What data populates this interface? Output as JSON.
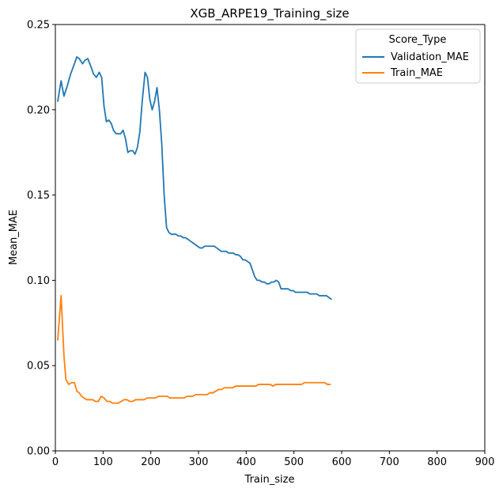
{
  "chart_data": {
    "type": "line",
    "title": "XGB_ARPE19_Training_size",
    "xlabel": "Train_size",
    "ylabel": "Mean_MAE",
    "xlim": [
      0,
      900
    ],
    "ylim": [
      0,
      0.25
    ],
    "xticks": [
      0,
      100,
      200,
      300,
      400,
      500,
      600,
      700,
      800,
      900
    ],
    "yticks": [
      0.0,
      0.05,
      0.1,
      0.15,
      0.2,
      0.25
    ],
    "xtick_labels": [
      "0",
      "100",
      "200",
      "300",
      "400",
      "500",
      "600",
      "700",
      "800",
      "900"
    ],
    "ytick_labels": [
      "0.00",
      "0.05",
      "0.10",
      "0.15",
      "0.20",
      "0.25"
    ],
    "grid": false,
    "legend": {
      "title": "Score_Type",
      "placement": "top-right"
    },
    "series": [
      {
        "name": "Validation_MAE",
        "color": "#1f77b4",
        "x": [
          5,
          12,
          18,
          25,
          32,
          40,
          45,
          50,
          57,
          62,
          68,
          75,
          80,
          86,
          92,
          97,
          102,
          107,
          112,
          117,
          122,
          127,
          132,
          137,
          142,
          147,
          152,
          157,
          162,
          167,
          172,
          177,
          182,
          188,
          193,
          198,
          203,
          208,
          213,
          218,
          223,
          228,
          233,
          238,
          243,
          248,
          253,
          258,
          263,
          268,
          273,
          278,
          283,
          288,
          293,
          298,
          303,
          308,
          313,
          318,
          323,
          328,
          333,
          338,
          343,
          348,
          353,
          358,
          363,
          368,
          373,
          378,
          383,
          388,
          393,
          398,
          403,
          408,
          413,
          418,
          423,
          428,
          433,
          438,
          443,
          448,
          453,
          458,
          463,
          468,
          473,
          478,
          483,
          488,
          493,
          498,
          503,
          508,
          513,
          518,
          523,
          528,
          533,
          538,
          543,
          548,
          553,
          558,
          563,
          568,
          573,
          578
        ],
        "y": [
          0.205,
          0.217,
          0.208,
          0.214,
          0.221,
          0.227,
          0.231,
          0.23,
          0.227,
          0.229,
          0.23,
          0.225,
          0.221,
          0.219,
          0.222,
          0.219,
          0.202,
          0.193,
          0.194,
          0.192,
          0.188,
          0.186,
          0.186,
          0.186,
          0.188,
          0.183,
          0.175,
          0.176,
          0.176,
          0.174,
          0.178,
          0.187,
          0.205,
          0.222,
          0.219,
          0.206,
          0.2,
          0.205,
          0.213,
          0.2,
          0.18,
          0.15,
          0.131,
          0.128,
          0.127,
          0.127,
          0.127,
          0.126,
          0.126,
          0.125,
          0.125,
          0.124,
          0.123,
          0.122,
          0.121,
          0.12,
          0.119,
          0.119,
          0.12,
          0.12,
          0.12,
          0.12,
          0.12,
          0.119,
          0.118,
          0.117,
          0.117,
          0.117,
          0.116,
          0.116,
          0.116,
          0.115,
          0.115,
          0.114,
          0.112,
          0.112,
          0.111,
          0.11,
          0.106,
          0.102,
          0.1,
          0.1,
          0.099,
          0.099,
          0.098,
          0.098,
          0.099,
          0.099,
          0.1,
          0.099,
          0.095,
          0.095,
          0.095,
          0.095,
          0.094,
          0.094,
          0.093,
          0.093,
          0.093,
          0.093,
          0.093,
          0.093,
          0.092,
          0.092,
          0.092,
          0.092,
          0.091,
          0.091,
          0.091,
          0.091,
          0.09,
          0.089
        ]
      },
      {
        "name": "Train_MAE",
        "color": "#ff7f0e",
        "x": [
          5,
          12,
          18,
          22,
          28,
          34,
          40,
          45,
          50,
          55,
          60,
          66,
          72,
          78,
          84,
          90,
          96,
          102,
          108,
          114,
          120,
          126,
          132,
          138,
          144,
          150,
          156,
          162,
          168,
          174,
          180,
          186,
          192,
          198,
          204,
          210,
          216,
          222,
          228,
          234,
          240,
          246,
          252,
          258,
          264,
          270,
          276,
          282,
          288,
          294,
          300,
          306,
          312,
          318,
          324,
          330,
          336,
          342,
          348,
          354,
          360,
          366,
          372,
          378,
          384,
          390,
          396,
          402,
          408,
          414,
          420,
          426,
          432,
          438,
          444,
          450,
          456,
          462,
          468,
          474,
          480,
          486,
          492,
          498,
          504,
          510,
          516,
          522,
          528,
          534,
          540,
          546,
          552,
          558,
          564,
          570,
          576
        ],
        "y": [
          0.065,
          0.091,
          0.056,
          0.042,
          0.039,
          0.04,
          0.04,
          0.035,
          0.034,
          0.032,
          0.031,
          0.03,
          0.03,
          0.03,
          0.029,
          0.029,
          0.032,
          0.031,
          0.029,
          0.029,
          0.028,
          0.028,
          0.028,
          0.029,
          0.03,
          0.03,
          0.029,
          0.029,
          0.03,
          0.03,
          0.03,
          0.03,
          0.031,
          0.031,
          0.031,
          0.031,
          0.032,
          0.032,
          0.032,
          0.032,
          0.031,
          0.031,
          0.031,
          0.031,
          0.031,
          0.031,
          0.032,
          0.032,
          0.032,
          0.033,
          0.033,
          0.033,
          0.033,
          0.033,
          0.034,
          0.034,
          0.035,
          0.036,
          0.036,
          0.037,
          0.037,
          0.037,
          0.037,
          0.038,
          0.038,
          0.038,
          0.038,
          0.038,
          0.038,
          0.038,
          0.038,
          0.039,
          0.039,
          0.039,
          0.039,
          0.039,
          0.038,
          0.039,
          0.039,
          0.039,
          0.039,
          0.039,
          0.039,
          0.039,
          0.039,
          0.039,
          0.039,
          0.04,
          0.04,
          0.04,
          0.04,
          0.04,
          0.04,
          0.04,
          0.04,
          0.039,
          0.039
        ]
      }
    ]
  }
}
